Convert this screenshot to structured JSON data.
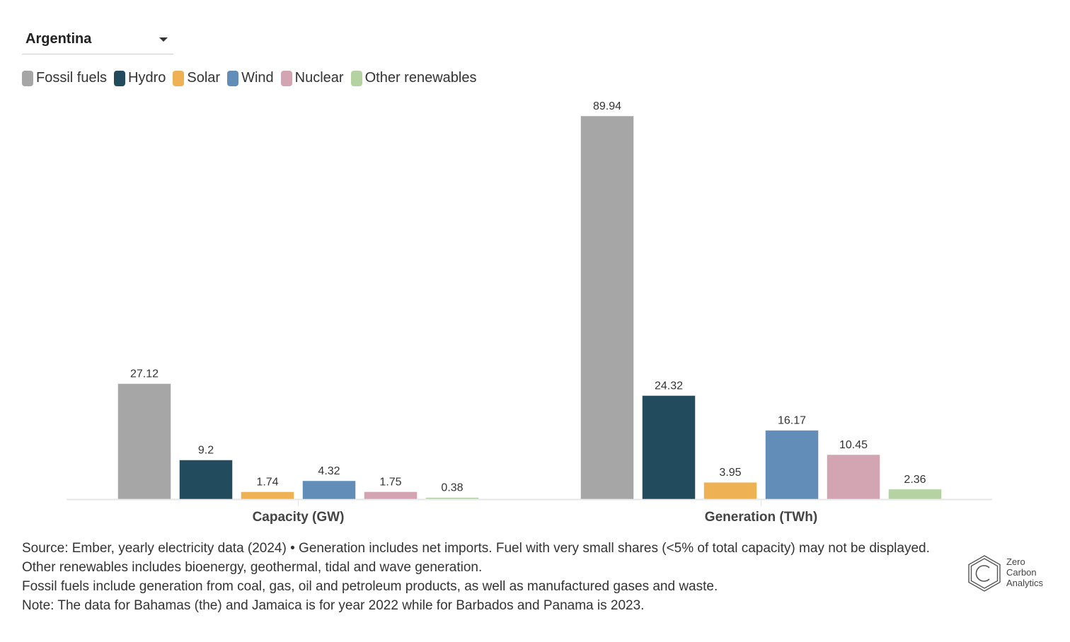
{
  "selector": {
    "selected": "Argentina"
  },
  "legend": [
    {
      "label": "Fossil fuels",
      "color": "#a6a6a6"
    },
    {
      "label": "Hydro",
      "color": "#224b5e"
    },
    {
      "label": "Solar",
      "color": "#eeb255"
    },
    {
      "label": "Wind",
      "color": "#628db8"
    },
    {
      "label": "Nuclear",
      "color": "#d3a5b3"
    },
    {
      "label": "Other renewables",
      "color": "#b5d2a2"
    }
  ],
  "chart_data": {
    "type": "bar",
    "title": "",
    "xlabel": "",
    "ylabel": "",
    "categories": [
      "Capacity (GW)",
      "Generation (TWh)"
    ],
    "series": [
      {
        "name": "Fossil fuels",
        "color": "#a6a6a6",
        "values": [
          27.12,
          89.94
        ],
        "labels": [
          "27.12",
          "89.94"
        ]
      },
      {
        "name": "Hydro",
        "color": "#224b5e",
        "values": [
          9.2,
          24.32
        ],
        "labels": [
          "9.2",
          "24.32"
        ]
      },
      {
        "name": "Solar",
        "color": "#eeb255",
        "values": [
          1.74,
          3.95
        ],
        "labels": [
          "1.74",
          "3.95"
        ]
      },
      {
        "name": "Wind",
        "color": "#628db8",
        "values": [
          4.32,
          16.17
        ],
        "labels": [
          "4.32",
          "16.17"
        ]
      },
      {
        "name": "Nuclear",
        "color": "#d3a5b3",
        "values": [
          1.75,
          10.45
        ],
        "labels": [
          "1.75",
          "10.45"
        ]
      },
      {
        "name": "Other renewables",
        "color": "#b5d2a2",
        "values": [
          0.38,
          2.36
        ],
        "labels": [
          "0.38",
          "2.36"
        ]
      }
    ],
    "ylim": [
      0,
      89.94
    ],
    "grid": false,
    "legend_position": "top-left"
  },
  "footer": {
    "line1": "Source: Ember, yearly electricity data (2024) • Generation includes net imports. Fuel with very small shares (<5% of total capacity) may not be displayed. Other renewables includes bioenergy, geothermal, tidal and wave generation.",
    "line2": "Fossil fuels include generation from coal, gas, oil and petroleum products, as well as manufactured gases and waste.",
    "line3": "Note: The data for Bahamas (the) and Jamaica is for year 2022 while for Barbados and Panama is 2023."
  },
  "logo": {
    "line1": "Zero",
    "line2": "Carbon",
    "line3": "Analytics"
  }
}
